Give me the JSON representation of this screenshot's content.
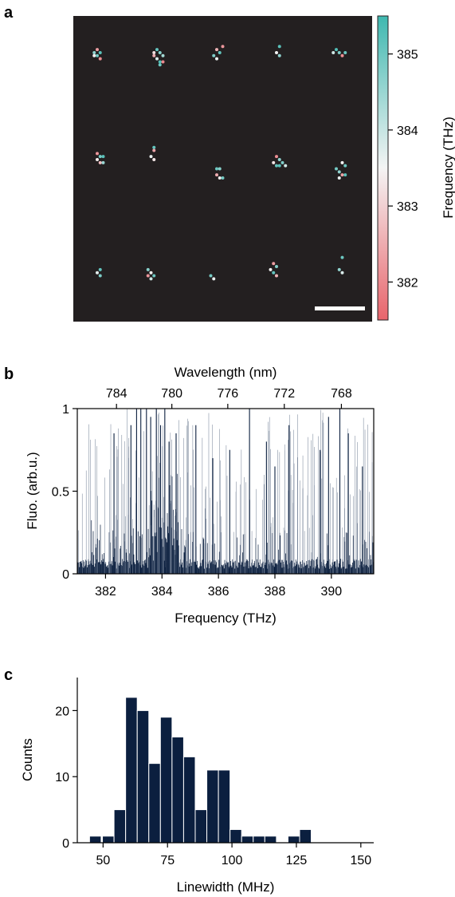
{
  "chart_data": [
    {
      "panel": "a",
      "type": "scatter",
      "colorbar": {
        "label": "Frequency (THz)",
        "ticks": [
          382,
          383,
          384,
          385
        ],
        "range": [
          381.5,
          385.5
        ],
        "color_low": "#e8646b",
        "color_mid": "#f4f4f4",
        "color_high": "#3fb8b0"
      },
      "background_color": "#231f20",
      "grid_rows": 3,
      "grid_cols": 5,
      "scale_bar": true,
      "points": [
        {
          "x": 0.07,
          "y": 0.12,
          "f": 384.6
        },
        {
          "x": 0.08,
          "y": 0.11,
          "f": 382.3
        },
        {
          "x": 0.09,
          "y": 0.12,
          "f": 385.2
        },
        {
          "x": 0.07,
          "y": 0.13,
          "f": 383.4
        },
        {
          "x": 0.08,
          "y": 0.13,
          "f": 384.9
        },
        {
          "x": 0.09,
          "y": 0.14,
          "f": 382.1
        },
        {
          "x": 0.28,
          "y": 0.11,
          "f": 385.1
        },
        {
          "x": 0.29,
          "y": 0.12,
          "f": 384.7
        },
        {
          "x": 0.27,
          "y": 0.13,
          "f": 382.5
        },
        {
          "x": 0.28,
          "y": 0.14,
          "f": 383.8
        },
        {
          "x": 0.29,
          "y": 0.15,
          "f": 385.3
        },
        {
          "x": 0.3,
          "y": 0.13,
          "f": 384.4
        },
        {
          "x": 0.27,
          "y": 0.12,
          "f": 383.2
        },
        {
          "x": 0.3,
          "y": 0.15,
          "f": 382.0
        },
        {
          "x": 0.29,
          "y": 0.16,
          "f": 385.0
        },
        {
          "x": 0.48,
          "y": 0.11,
          "f": 382.6
        },
        {
          "x": 0.5,
          "y": 0.1,
          "f": 382.2
        },
        {
          "x": 0.47,
          "y": 0.13,
          "f": 384.8
        },
        {
          "x": 0.48,
          "y": 0.14,
          "f": 383.6
        },
        {
          "x": 0.49,
          "y": 0.12,
          "f": 385.1
        },
        {
          "x": 0.69,
          "y": 0.1,
          "f": 385.2
        },
        {
          "x": 0.68,
          "y": 0.12,
          "f": 383.5
        },
        {
          "x": 0.69,
          "y": 0.13,
          "f": 384.6
        },
        {
          "x": 0.88,
          "y": 0.11,
          "f": 385.3
        },
        {
          "x": 0.89,
          "y": 0.12,
          "f": 384.8
        },
        {
          "x": 0.9,
          "y": 0.13,
          "f": 382.1
        },
        {
          "x": 0.87,
          "y": 0.12,
          "f": 383.9
        },
        {
          "x": 0.91,
          "y": 0.12,
          "f": 385.0
        },
        {
          "x": 0.08,
          "y": 0.45,
          "f": 382.2
        },
        {
          "x": 0.09,
          "y": 0.46,
          "f": 384.9
        },
        {
          "x": 0.08,
          "y": 0.47,
          "f": 383.4
        },
        {
          "x": 0.1,
          "y": 0.46,
          "f": 385.2
        },
        {
          "x": 0.09,
          "y": 0.48,
          "f": 382.7
        },
        {
          "x": 0.1,
          "y": 0.48,
          "f": 384.5
        },
        {
          "x": 0.27,
          "y": 0.43,
          "f": 385.1
        },
        {
          "x": 0.27,
          "y": 0.44,
          "f": 382.4
        },
        {
          "x": 0.26,
          "y": 0.46,
          "f": 383.6
        },
        {
          "x": 0.27,
          "y": 0.47,
          "f": 383.3
        },
        {
          "x": 0.48,
          "y": 0.5,
          "f": 385.0
        },
        {
          "x": 0.49,
          "y": 0.5,
          "f": 384.7
        },
        {
          "x": 0.48,
          "y": 0.52,
          "f": 382.5
        },
        {
          "x": 0.49,
          "y": 0.53,
          "f": 383.4
        },
        {
          "x": 0.5,
          "y": 0.53,
          "f": 384.9
        },
        {
          "x": 0.68,
          "y": 0.46,
          "f": 382.1
        },
        {
          "x": 0.69,
          "y": 0.47,
          "f": 384.6
        },
        {
          "x": 0.67,
          "y": 0.48,
          "f": 383.3
        },
        {
          "x": 0.69,
          "y": 0.49,
          "f": 385.2
        },
        {
          "x": 0.7,
          "y": 0.48,
          "f": 384.8
        },
        {
          "x": 0.68,
          "y": 0.49,
          "f": 385.1
        },
        {
          "x": 0.71,
          "y": 0.49,
          "f": 383.9
        },
        {
          "x": 0.9,
          "y": 0.48,
          "f": 383.5
        },
        {
          "x": 0.91,
          "y": 0.49,
          "f": 385.0
        },
        {
          "x": 0.89,
          "y": 0.51,
          "f": 384.6
        },
        {
          "x": 0.9,
          "y": 0.52,
          "f": 382.3
        },
        {
          "x": 0.91,
          "y": 0.52,
          "f": 385.2
        },
        {
          "x": 0.89,
          "y": 0.53,
          "f": 383.6
        },
        {
          "x": 0.88,
          "y": 0.5,
          "f": 384.9
        },
        {
          "x": 0.09,
          "y": 0.83,
          "f": 385.1
        },
        {
          "x": 0.08,
          "y": 0.84,
          "f": 383.7
        },
        {
          "x": 0.09,
          "y": 0.85,
          "f": 384.8
        },
        {
          "x": 0.25,
          "y": 0.83,
          "f": 384.7
        },
        {
          "x": 0.26,
          "y": 0.84,
          "f": 383.5
        },
        {
          "x": 0.25,
          "y": 0.85,
          "f": 382.2
        },
        {
          "x": 0.27,
          "y": 0.85,
          "f": 385.0
        },
        {
          "x": 0.26,
          "y": 0.86,
          "f": 383.9
        },
        {
          "x": 0.46,
          "y": 0.85,
          "f": 384.9
        },
        {
          "x": 0.47,
          "y": 0.86,
          "f": 383.6
        },
        {
          "x": 0.67,
          "y": 0.81,
          "f": 382.3
        },
        {
          "x": 0.68,
          "y": 0.82,
          "f": 384.7
        },
        {
          "x": 0.66,
          "y": 0.83,
          "f": 383.5
        },
        {
          "x": 0.67,
          "y": 0.84,
          "f": 385.1
        },
        {
          "x": 0.68,
          "y": 0.85,
          "f": 382.6
        },
        {
          "x": 0.9,
          "y": 0.79,
          "f": 385.0
        },
        {
          "x": 0.89,
          "y": 0.83,
          "f": 384.6
        },
        {
          "x": 0.9,
          "y": 0.84,
          "f": 383.8
        }
      ]
    },
    {
      "panel": "b",
      "type": "line",
      "xlabel": "Frequency (THz)",
      "ylabel": "Fluo. (arb.u.)",
      "top_xlabel": "Wavelength (nm)",
      "xlim": [
        381,
        391.5
      ],
      "ylim": [
        0,
        1
      ],
      "xticks": [
        382,
        384,
        386,
        388,
        390
      ],
      "yticks": [
        0,
        0.5,
        1
      ],
      "ytick_labels": [
        "0",
        "0.5",
        "1"
      ],
      "top_xticks": [
        784,
        780,
        776,
        772,
        768
      ],
      "color": "#0b1f3f",
      "peaks": [
        {
          "x": 382.3,
          "y": 0.85
        },
        {
          "x": 382.9,
          "y": 0.9
        },
        {
          "x": 383.1,
          "y": 1.0
        },
        {
          "x": 383.25,
          "y": 1.0
        },
        {
          "x": 383.45,
          "y": 1.0
        },
        {
          "x": 383.6,
          "y": 0.95
        },
        {
          "x": 383.8,
          "y": 1.0
        },
        {
          "x": 383.95,
          "y": 0.9
        },
        {
          "x": 384.1,
          "y": 1.0
        },
        {
          "x": 384.25,
          "y": 0.8
        },
        {
          "x": 384.5,
          "y": 0.85
        },
        {
          "x": 385.2,
          "y": 0.9
        },
        {
          "x": 385.8,
          "y": 0.7
        },
        {
          "x": 386.4,
          "y": 0.75
        },
        {
          "x": 387.1,
          "y": 1.0
        },
        {
          "x": 387.7,
          "y": 0.8
        },
        {
          "x": 388.0,
          "y": 0.65
        },
        {
          "x": 388.5,
          "y": 0.9
        },
        {
          "x": 389.6,
          "y": 0.75
        },
        {
          "x": 389.9,
          "y": 0.95
        },
        {
          "x": 390.3,
          "y": 1.0
        },
        {
          "x": 390.6,
          "y": 0.85
        },
        {
          "x": 391.1,
          "y": 0.65
        }
      ]
    },
    {
      "panel": "c",
      "type": "bar",
      "xlabel": "Linewidth (MHz)",
      "ylabel": "Counts",
      "xlim": [
        40,
        155
      ],
      "ylim": [
        0,
        25
      ],
      "xticks": [
        50,
        75,
        100,
        125,
        150
      ],
      "yticks": [
        0,
        10,
        20
      ],
      "bin_width": 4.5,
      "color": "#0b1f3f",
      "bins": [
        {
          "x": 47,
          "count": 1
        },
        {
          "x": 52,
          "count": 1
        },
        {
          "x": 56.5,
          "count": 5
        },
        {
          "x": 61,
          "count": 22
        },
        {
          "x": 65.5,
          "count": 20
        },
        {
          "x": 70,
          "count": 12
        },
        {
          "x": 74.5,
          "count": 19
        },
        {
          "x": 79,
          "count": 16
        },
        {
          "x": 83.5,
          "count": 13
        },
        {
          "x": 88,
          "count": 5
        },
        {
          "x": 92.5,
          "count": 11
        },
        {
          "x": 97,
          "count": 11
        },
        {
          "x": 101.5,
          "count": 2
        },
        {
          "x": 106,
          "count": 1
        },
        {
          "x": 110.5,
          "count": 1
        },
        {
          "x": 115,
          "count": 1
        },
        {
          "x": 119.5,
          "count": 0
        },
        {
          "x": 124,
          "count": 1
        },
        {
          "x": 128.5,
          "count": 2
        }
      ]
    }
  ],
  "panels": {
    "a": {
      "label": "a"
    },
    "b": {
      "label": "b"
    },
    "c": {
      "label": "c"
    }
  }
}
